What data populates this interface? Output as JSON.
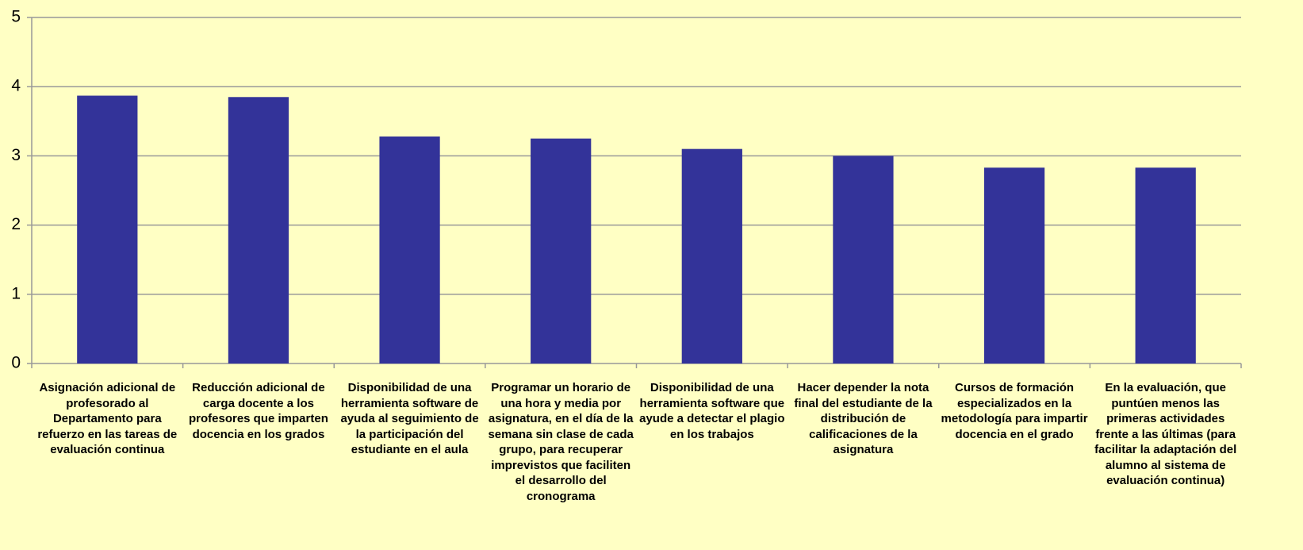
{
  "chart_data": {
    "type": "bar",
    "categories": [
      "Asignación adicional de profesorado al Departamento para refuerzo en las tareas de evaluación continua",
      "Reducción adicional de carga docente a los profesores que imparten docencia en los grados",
      "Disponibilidad de una herramienta software de ayuda al seguimiento de la participación del estudiante en el aula",
      "Programar un horario de una hora y media por asignatura, en el día de la semana sin clase de cada grupo, para recuperar imprevistos que faciliten el desarrollo del cronograma",
      "Disponibilidad de una herramienta software que ayude a detectar el plagio en los trabajos",
      "Hacer depender la nota final del estudiante de la distribución de calificaciones de la asignatura",
      "Cursos de formación especializados en la metodología para impartir docencia en el grado",
      "En la evaluación, que puntúen menos las primeras actividades frente a las últimas (para facilitar la adaptación del alumno al sistema de evaluación continua)"
    ],
    "values": [
      3.87,
      3.85,
      3.28,
      3.25,
      3.1,
      3.0,
      2.83,
      2.83
    ],
    "color": "#333399",
    "ylim": [
      0,
      5
    ],
    "yticks": [
      0,
      1,
      2,
      3,
      4,
      5
    ],
    "grid": true
  }
}
